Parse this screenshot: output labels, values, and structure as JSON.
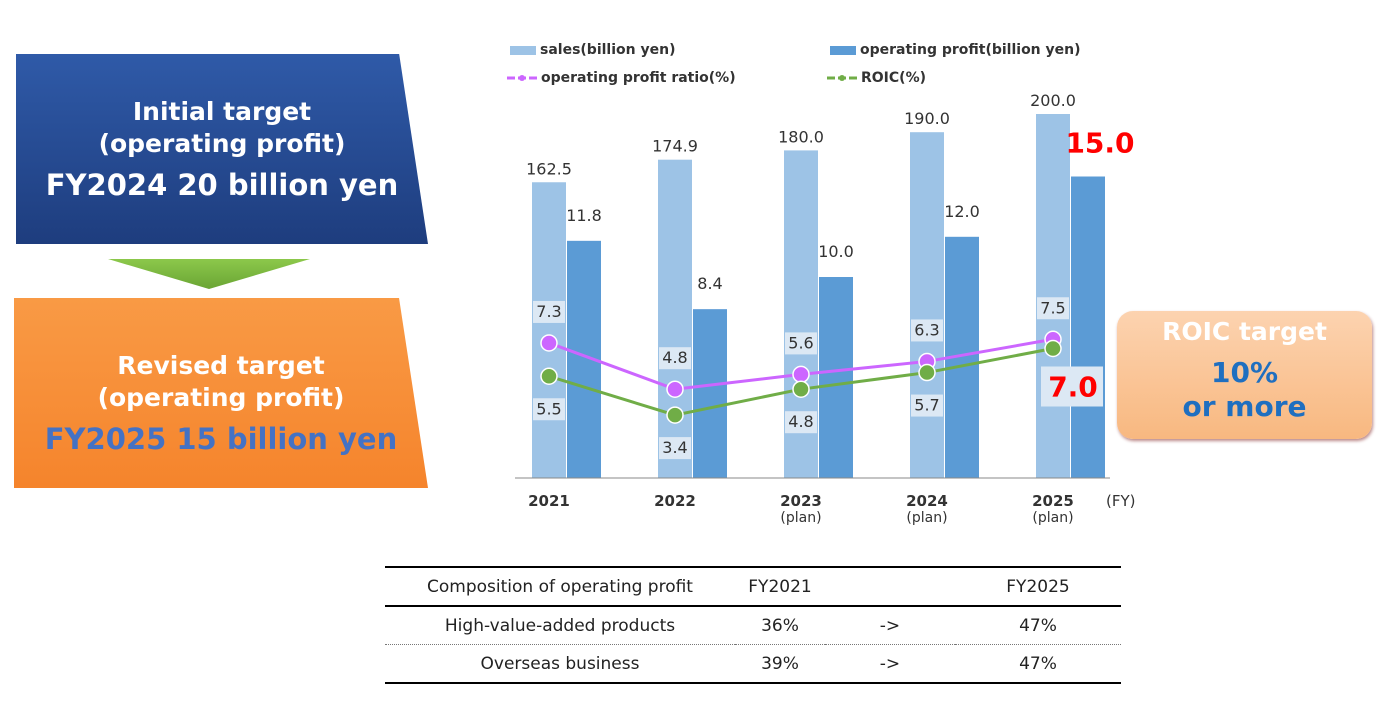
{
  "initial_box": {
    "line1": "Initial target",
    "line2": "(operating profit)",
    "line3": "FY2024 20 billion yen"
  },
  "revised_box": {
    "line1": "Revised target",
    "line2": "(operating profit)",
    "line3": "FY2025 15 billion yen"
  },
  "roic_box": {
    "title": "ROIC target",
    "value": "10%",
    "suffix": "or more"
  },
  "chart_data": {
    "type": "bar",
    "categories": [
      "2021",
      "2022",
      "2023",
      "2024",
      "2025"
    ],
    "category_sublabels": [
      "",
      "",
      "(plan)",
      "(plan)",
      "(plan)"
    ],
    "x_unit": "(FY)",
    "series": [
      {
        "name": "sales(billion yen)",
        "kind": "bar",
        "axis": "left",
        "color": "#9dc3e6",
        "values": [
          162.5,
          174.9,
          180.0,
          190.0,
          200.0
        ],
        "labels": [
          "162.5",
          "174.9",
          "180.0",
          "190.0",
          "200.0"
        ]
      },
      {
        "name": "operating profit(billion yen)",
        "kind": "bar",
        "axis": "right",
        "color": "#5b9bd5",
        "values": [
          11.8,
          8.4,
          10.0,
          12.0,
          15.0
        ],
        "labels": [
          "11.8",
          "8.4",
          "10.0",
          "12.0",
          "15.0"
        ]
      },
      {
        "name": "operating profit ratio(%)",
        "kind": "line",
        "color": "#cc66ff",
        "values": [
          7.3,
          4.8,
          5.6,
          6.3,
          7.5
        ],
        "labels": [
          "7.3",
          "4.8",
          "5.6",
          "6.3",
          "7.5"
        ]
      },
      {
        "name": "ROIC(%)",
        "kind": "line",
        "color": "#70ad47",
        "values": [
          5.5,
          3.4,
          4.8,
          5.7,
          7.0
        ],
        "labels": [
          "5.5",
          "3.4",
          "4.8",
          "5.7",
          "7.0"
        ]
      }
    ],
    "highlight_color": "#ff0000",
    "legend_position": "top"
  },
  "table": {
    "headers": [
      "Composition of operating profit",
      "FY2021",
      "",
      "FY2025"
    ],
    "rows": [
      [
        "High-value-added products",
        "36%",
        "->",
        "47%"
      ],
      [
        "Overseas business",
        "39%",
        "->",
        "47%"
      ]
    ]
  }
}
